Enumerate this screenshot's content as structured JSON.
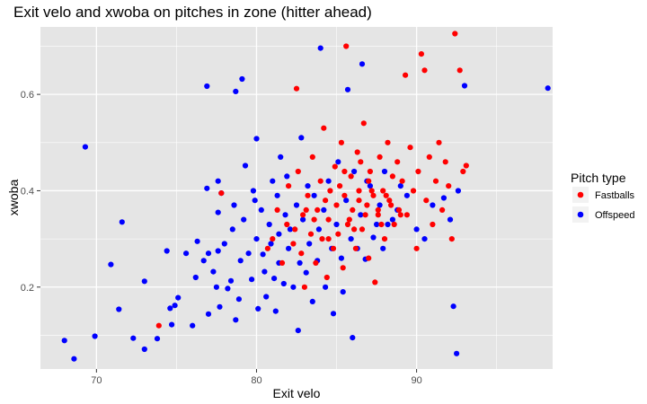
{
  "chart_data": {
    "type": "scatter",
    "title": "Exit velo and xwoba on pitches in zone (hitter ahead)",
    "xlabel": "Exit velo",
    "ylabel": "xwoba",
    "xlim": [
      66.5,
      98.5
    ],
    "ylim": [
      0.03,
      0.74
    ],
    "x_ticks": [
      70,
      80,
      90
    ],
    "x_minor_ticks": [
      75,
      85,
      95
    ],
    "y_ticks": [
      0.2,
      0.4,
      0.6
    ],
    "y_minor_ticks": [
      0.1,
      0.3,
      0.5,
      0.7
    ],
    "grid": true,
    "legend": {
      "title": "Pitch type",
      "position": "right"
    },
    "colors": {
      "Fastballs": "#ff0000",
      "Offspeed": "#0000ff",
      "panel": "#e5e5e5",
      "grid": "#ffffff"
    },
    "series": [
      {
        "name": "Offspeed",
        "color": "#0000ff",
        "points": [
          [
            68.0,
            0.089
          ],
          [
            68.6,
            0.051
          ],
          [
            69.3,
            0.491
          ],
          [
            69.9,
            0.098
          ],
          [
            70.9,
            0.247
          ],
          [
            71.4,
            0.154
          ],
          [
            71.6,
            0.335
          ],
          [
            72.3,
            0.094
          ],
          [
            73.0,
            0.071
          ],
          [
            73.0,
            0.212
          ],
          [
            73.8,
            0.093
          ],
          [
            74.4,
            0.275
          ],
          [
            74.6,
            0.156
          ],
          [
            74.7,
            0.122
          ],
          [
            74.9,
            0.162
          ],
          [
            75.1,
            0.178
          ],
          [
            75.6,
            0.27
          ],
          [
            76.0,
            0.12
          ],
          [
            76.2,
            0.22
          ],
          [
            76.3,
            0.295
          ],
          [
            76.7,
            0.255
          ],
          [
            76.9,
            0.405
          ],
          [
            76.9,
            0.617
          ],
          [
            77.0,
            0.144
          ],
          [
            77.0,
            0.27
          ],
          [
            77.3,
            0.232
          ],
          [
            77.5,
            0.2
          ],
          [
            77.6,
            0.275
          ],
          [
            77.6,
            0.355
          ],
          [
            77.6,
            0.42
          ],
          [
            77.7,
            0.159
          ],
          [
            77.8,
            0.395
          ],
          [
            78.0,
            0.29
          ],
          [
            78.2,
            0.197
          ],
          [
            78.4,
            0.213
          ],
          [
            78.5,
            0.32
          ],
          [
            78.6,
            0.37
          ],
          [
            78.7,
            0.132
          ],
          [
            78.7,
            0.606
          ],
          [
            78.9,
            0.175
          ],
          [
            79.0,
            0.255
          ],
          [
            79.1,
            0.632
          ],
          [
            79.2,
            0.34
          ],
          [
            79.3,
            0.452
          ],
          [
            79.5,
            0.27
          ],
          [
            79.7,
            0.216
          ],
          [
            79.8,
            0.4
          ],
          [
            79.9,
            0.38
          ],
          [
            80.0,
            0.3
          ],
          [
            80.0,
            0.508
          ],
          [
            80.1,
            0.155
          ],
          [
            80.3,
            0.36
          ],
          [
            80.4,
            0.268
          ],
          [
            80.5,
            0.232
          ],
          [
            80.6,
            0.18
          ],
          [
            80.8,
            0.33
          ],
          [
            80.9,
            0.29
          ],
          [
            81.0,
            0.42
          ],
          [
            81.1,
            0.218
          ],
          [
            81.2,
            0.15
          ],
          [
            81.3,
            0.39
          ],
          [
            81.4,
            0.25
          ],
          [
            81.4,
            0.31
          ],
          [
            81.5,
            0.47
          ],
          [
            81.7,
            0.207
          ],
          [
            81.8,
            0.35
          ],
          [
            81.9,
            0.43
          ],
          [
            82.0,
            0.28
          ],
          [
            82.1,
            0.32
          ],
          [
            82.3,
            0.2
          ],
          [
            82.5,
            0.37
          ],
          [
            82.6,
            0.11
          ],
          [
            82.7,
            0.25
          ],
          [
            82.8,
            0.51
          ],
          [
            82.9,
            0.34
          ],
          [
            83.1,
            0.23
          ],
          [
            83.2,
            0.41
          ],
          [
            83.3,
            0.29
          ],
          [
            83.5,
            0.17
          ],
          [
            83.6,
            0.39
          ],
          [
            83.8,
            0.255
          ],
          [
            83.9,
            0.32
          ],
          [
            84.0,
            0.696
          ],
          [
            84.2,
            0.36
          ],
          [
            84.3,
            0.2
          ],
          [
            84.5,
            0.42
          ],
          [
            84.7,
            0.28
          ],
          [
            84.8,
            0.145
          ],
          [
            85.0,
            0.33
          ],
          [
            85.1,
            0.46
          ],
          [
            85.3,
            0.26
          ],
          [
            85.4,
            0.19
          ],
          [
            85.6,
            0.38
          ],
          [
            85.7,
            0.61
          ],
          [
            85.9,
            0.3
          ],
          [
            86.0,
            0.095
          ],
          [
            86.1,
            0.44
          ],
          [
            86.3,
            0.28
          ],
          [
            86.5,
            0.35
          ],
          [
            86.6,
            0.663
          ],
          [
            86.8,
            0.258
          ],
          [
            86.9,
            0.42
          ],
          [
            87.1,
            0.41
          ],
          [
            87.3,
            0.303
          ],
          [
            87.5,
            0.33
          ],
          [
            87.7,
            0.37
          ],
          [
            87.9,
            0.28
          ],
          [
            88.0,
            0.44
          ],
          [
            88.2,
            0.33
          ],
          [
            88.5,
            0.34
          ],
          [
            88.8,
            0.36
          ],
          [
            89.0,
            0.41
          ],
          [
            89.4,
            0.39
          ],
          [
            90.0,
            0.32
          ],
          [
            90.5,
            0.3
          ],
          [
            91.0,
            0.37
          ],
          [
            91.7,
            0.385
          ],
          [
            92.1,
            0.34
          ],
          [
            92.3,
            0.16
          ],
          [
            92.5,
            0.062
          ],
          [
            93.0,
            0.618
          ],
          [
            92.6,
            0.4
          ],
          [
            98.2,
            0.613
          ]
        ]
      },
      {
        "name": "Fastballs",
        "color": "#ff0000",
        "points": [
          [
            73.9,
            0.12
          ],
          [
            77.8,
            0.395
          ],
          [
            80.7,
            0.28
          ],
          [
            81.0,
            0.3
          ],
          [
            81.3,
            0.36
          ],
          [
            81.6,
            0.25
          ],
          [
            81.9,
            0.33
          ],
          [
            82.0,
            0.41
          ],
          [
            82.3,
            0.29
          ],
          [
            82.5,
            0.612
          ],
          [
            82.6,
            0.44
          ],
          [
            82.8,
            0.27
          ],
          [
            82.9,
            0.35
          ],
          [
            83.0,
            0.2
          ],
          [
            83.2,
            0.39
          ],
          [
            83.4,
            0.31
          ],
          [
            83.5,
            0.47
          ],
          [
            83.7,
            0.25
          ],
          [
            83.8,
            0.36
          ],
          [
            84.0,
            0.42
          ],
          [
            84.1,
            0.3
          ],
          [
            84.2,
            0.53
          ],
          [
            84.4,
            0.22
          ],
          [
            84.5,
            0.34
          ],
          [
            84.6,
            0.4
          ],
          [
            84.8,
            0.28
          ],
          [
            84.9,
            0.45
          ],
          [
            85.0,
            0.37
          ],
          [
            85.1,
            0.31
          ],
          [
            85.3,
            0.5
          ],
          [
            85.4,
            0.24
          ],
          [
            85.5,
            0.39
          ],
          [
            85.6,
            0.7
          ],
          [
            85.7,
            0.33
          ],
          [
            85.9,
            0.43
          ],
          [
            86.0,
            0.36
          ],
          [
            86.2,
            0.28
          ],
          [
            86.3,
            0.48
          ],
          [
            86.4,
            0.4
          ],
          [
            86.6,
            0.32
          ],
          [
            86.7,
            0.54
          ],
          [
            86.9,
            0.37
          ],
          [
            87.0,
            0.26
          ],
          [
            87.1,
            0.44
          ],
          [
            87.3,
            0.39
          ],
          [
            87.4,
            0.21
          ],
          [
            87.6,
            0.35
          ],
          [
            87.7,
            0.47
          ],
          [
            87.9,
            0.4
          ],
          [
            88.0,
            0.3
          ],
          [
            88.2,
            0.5
          ],
          [
            88.3,
            0.38
          ],
          [
            88.5,
            0.43
          ],
          [
            88.6,
            0.33
          ],
          [
            88.8,
            0.46
          ],
          [
            88.9,
            0.36
          ],
          [
            89.1,
            0.42
          ],
          [
            89.3,
            0.64
          ],
          [
            89.4,
            0.35
          ],
          [
            89.6,
            0.49
          ],
          [
            89.8,
            0.4
          ],
          [
            90.0,
            0.28
          ],
          [
            90.1,
            0.44
          ],
          [
            90.3,
            0.684
          ],
          [
            90.5,
            0.65
          ],
          [
            90.6,
            0.38
          ],
          [
            90.8,
            0.47
          ],
          [
            91.0,
            0.33
          ],
          [
            91.2,
            0.42
          ],
          [
            91.4,
            0.5
          ],
          [
            91.6,
            0.36
          ],
          [
            91.8,
            0.46
          ],
          [
            92.0,
            0.41
          ],
          [
            92.2,
            0.3
          ],
          [
            92.4,
            0.726
          ],
          [
            92.7,
            0.65
          ],
          [
            92.9,
            0.44
          ],
          [
            93.1,
            0.452
          ],
          [
            84.5,
            0.3
          ],
          [
            85.2,
            0.41
          ],
          [
            85.8,
            0.34
          ],
          [
            86.4,
            0.38
          ],
          [
            87.0,
            0.42
          ],
          [
            87.6,
            0.36
          ],
          [
            88.1,
            0.39
          ],
          [
            83.6,
            0.34
          ],
          [
            84.3,
            0.38
          ],
          [
            86.1,
            0.32
          ],
          [
            86.8,
            0.35
          ],
          [
            87.2,
            0.4
          ],
          [
            87.8,
            0.33
          ],
          [
            88.4,
            0.37
          ],
          [
            89.0,
            0.35
          ],
          [
            82.4,
            0.32
          ],
          [
            83.1,
            0.36
          ],
          [
            85.5,
            0.44
          ],
          [
            86.5,
            0.46
          ]
        ]
      }
    ]
  }
}
